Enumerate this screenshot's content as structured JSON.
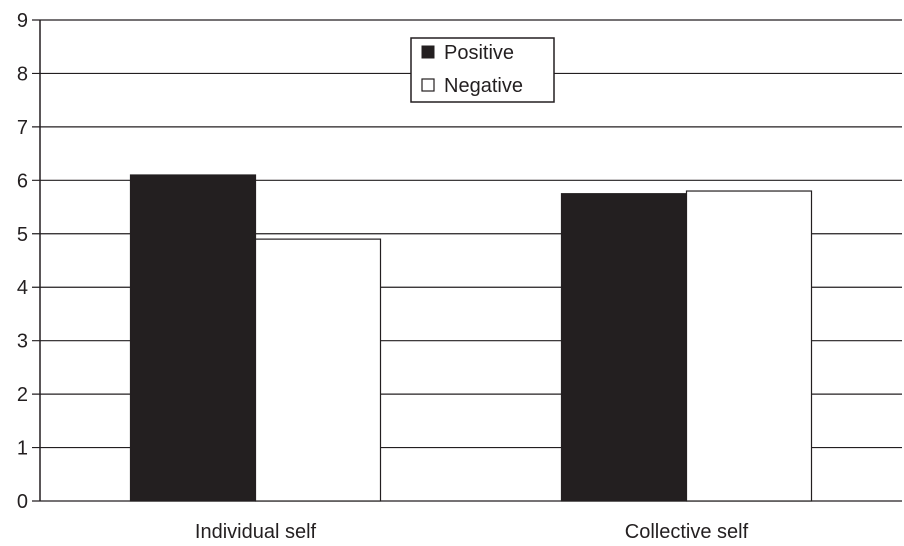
{
  "chart_data": {
    "type": "bar",
    "categories": [
      "Individual self",
      "Collective self"
    ],
    "series": [
      {
        "name": "Positive",
        "values": [
          6.1,
          5.75
        ],
        "color": "#231f20"
      },
      {
        "name": "Negative",
        "values": [
          4.9,
          5.8
        ],
        "color": "#ffffff"
      }
    ],
    "ylim": [
      0,
      9
    ],
    "yticks": [
      "0",
      "1",
      "2",
      "3",
      "4",
      "5",
      "6",
      "7",
      "8",
      "9"
    ],
    "grid": true,
    "legend_position": "top-center"
  }
}
